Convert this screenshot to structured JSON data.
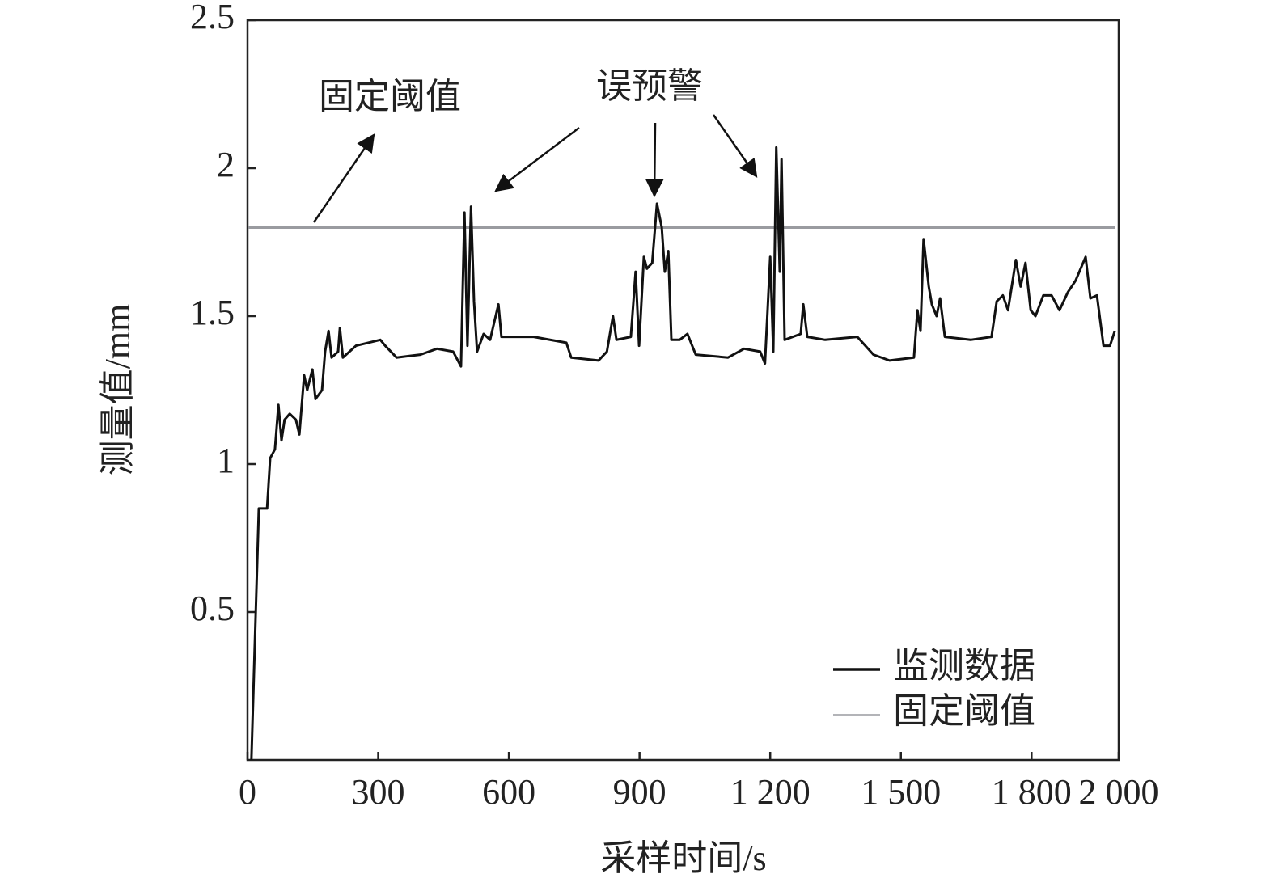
{
  "chart_data": {
    "type": "line",
    "xlabel": "采样时间/s",
    "ylabel": "测量值/mm",
    "xlim": [
      0,
      2000
    ],
    "ylim": [
      0,
      2.5
    ],
    "xticks": [
      0,
      300,
      600,
      900,
      {
        "value": 1200,
        "label": "1 200"
      },
      {
        "value": 1500,
        "label": "1 500"
      },
      {
        "value": 1800,
        "label": "1 800"
      },
      {
        "value": 2000,
        "label": "2 000"
      }
    ],
    "yticks": [
      0.5,
      1.0,
      1.5,
      2.0,
      {
        "value": 2.5,
        "label": "2.5"
      }
    ],
    "legend": "lower right",
    "annotations": [
      {
        "text": "固定阈值"
      },
      {
        "text": "误预警"
      }
    ],
    "series": [
      {
        "name": "监测数据",
        "color": "#111111",
        "x": [
          9,
          19,
          26,
          45,
          52,
          63,
          71,
          78,
          85,
          97,
          111,
          119,
          130,
          137,
          149,
          156,
          171,
          178,
          186,
          193,
          208,
          212,
          219,
          249,
          305,
          316,
          342,
          397,
          435,
          472,
          490,
          498,
          505,
          513,
          520,
          527,
          542,
          557,
          576,
          583,
          657,
          732,
          743,
          806,
          825,
          839,
          847,
          880,
          891,
          899,
          910,
          917,
          929,
          940,
          951,
          958,
          966,
          973,
          992,
          1010,
          1029,
          1103,
          1140,
          1177,
          1188,
          1200,
          1207,
          1214,
          1222,
          1226,
          1233,
          1270,
          1276,
          1285,
          1326,
          1400,
          1437,
          1474,
          1530,
          1538,
          1545,
          1552,
          1564,
          1571,
          1582,
          1590,
          1601,
          1660,
          1708,
          1720,
          1734,
          1746,
          1764,
          1775,
          1786,
          1798,
          1809,
          1827,
          1846,
          1864,
          1883,
          1901,
          1924,
          1935,
          1950,
          1965,
          1980,
          1991
        ],
        "values": [
          0,
          0.5,
          0.85,
          0.85,
          1.02,
          1.05,
          1.2,
          1.08,
          1.15,
          1.17,
          1.15,
          1.1,
          1.3,
          1.25,
          1.32,
          1.22,
          1.25,
          1.38,
          1.45,
          1.36,
          1.38,
          1.46,
          1.36,
          1.4,
          1.42,
          1.4,
          1.36,
          1.37,
          1.39,
          1.38,
          1.33,
          1.85,
          1.4,
          1.87,
          1.55,
          1.38,
          1.44,
          1.42,
          1.54,
          1.43,
          1.43,
          1.41,
          1.36,
          1.35,
          1.38,
          1.5,
          1.42,
          1.43,
          1.65,
          1.4,
          1.7,
          1.66,
          1.68,
          1.88,
          1.8,
          1.65,
          1.72,
          1.42,
          1.42,
          1.44,
          1.37,
          1.36,
          1.39,
          1.38,
          1.34,
          1.7,
          1.38,
          2.07,
          1.65,
          2.03,
          1.42,
          1.44,
          1.54,
          1.43,
          1.42,
          1.43,
          1.37,
          1.35,
          1.36,
          1.52,
          1.45,
          1.76,
          1.6,
          1.54,
          1.5,
          1.56,
          1.43,
          1.42,
          1.43,
          1.55,
          1.57,
          1.52,
          1.69,
          1.6,
          1.68,
          1.52,
          1.5,
          1.57,
          1.57,
          1.52,
          1.58,
          1.62,
          1.7,
          1.56,
          1.57,
          1.4,
          1.4,
          1.45
        ]
      },
      {
        "name": "固定阈值",
        "color": "#9a9ba0",
        "x": [
          0,
          1991
        ],
        "values": [
          1.8,
          1.8
        ]
      }
    ]
  }
}
